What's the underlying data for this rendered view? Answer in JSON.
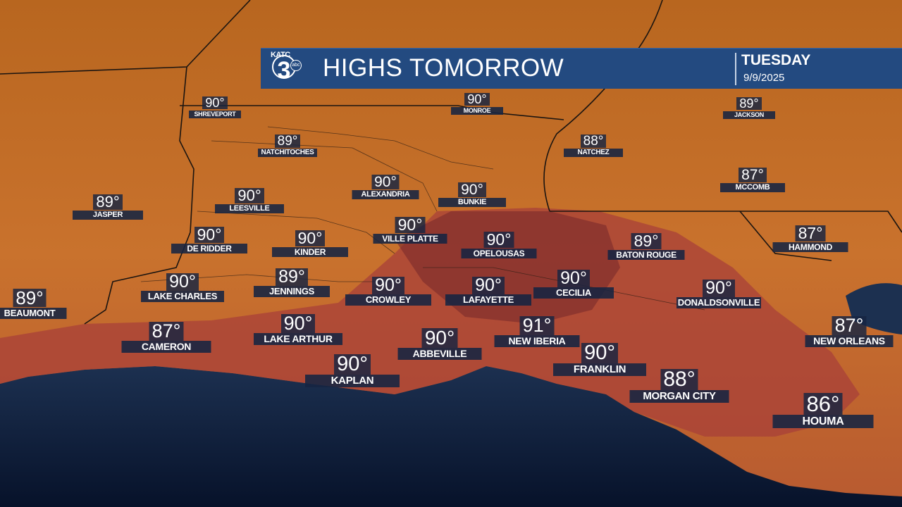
{
  "header": {
    "logo": "KATC 3 abc",
    "title": "HIGHS TOMORROW",
    "day": "TUESDAY",
    "date": "9/9/2025"
  },
  "colors": {
    "banner": "#234a80",
    "label_bg": "#162442",
    "land": "#c8712c",
    "hot_zone": "#a8403a",
    "gulf": "#0b1a33"
  },
  "cities": [
    {
      "name": "SHREVEPORT",
      "temp": "90°"
    },
    {
      "name": "MONROE",
      "temp": "90°"
    },
    {
      "name": "JACKSON",
      "temp": "89°"
    },
    {
      "name": "NATCHITOCHES",
      "temp": "89°"
    },
    {
      "name": "NATCHEZ",
      "temp": "88°"
    },
    {
      "name": "ALEXANDRIA",
      "temp": "90°"
    },
    {
      "name": "BUNKIE",
      "temp": "90°"
    },
    {
      "name": "MCCOMB",
      "temp": "87°"
    },
    {
      "name": "JASPER",
      "temp": "89°"
    },
    {
      "name": "LEESVILLE",
      "temp": "90°"
    },
    {
      "name": "DE RIDDER",
      "temp": "90°"
    },
    {
      "name": "KINDER",
      "temp": "90°"
    },
    {
      "name": "VILLE PLATTE",
      "temp": "90°"
    },
    {
      "name": "OPELOUSAS",
      "temp": "90°"
    },
    {
      "name": "BATON ROUGE",
      "temp": "89°"
    },
    {
      "name": "HAMMOND",
      "temp": "87°"
    },
    {
      "name": "LAKE CHARLES",
      "temp": "90°"
    },
    {
      "name": "JENNINGS",
      "temp": "89°"
    },
    {
      "name": "CROWLEY",
      "temp": "90°"
    },
    {
      "name": "LAFAYETTE",
      "temp": "90°"
    },
    {
      "name": "CECILIA",
      "temp": "90°"
    },
    {
      "name": "DONALDSONVILLE",
      "temp": "90°"
    },
    {
      "name": "BEAUMONT",
      "temp": "89°"
    },
    {
      "name": "LAKE ARTHUR",
      "temp": "90°"
    },
    {
      "name": "CAMERON",
      "temp": "87°"
    },
    {
      "name": "NEW IBERIA",
      "temp": "91°"
    },
    {
      "name": "NEW ORLEANS",
      "temp": "87°"
    },
    {
      "name": "ABBEVILLE",
      "temp": "90°"
    },
    {
      "name": "FRANKLIN",
      "temp": "90°"
    },
    {
      "name": "KAPLAN",
      "temp": "90°"
    },
    {
      "name": "MORGAN CITY",
      "temp": "88°"
    },
    {
      "name": "HOUMA",
      "temp": "86°"
    }
  ]
}
